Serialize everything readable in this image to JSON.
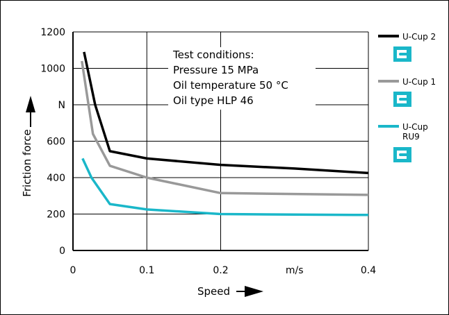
{
  "chart_data": {
    "type": "line",
    "title": "",
    "xlabel": "Speed",
    "ylabel": "Friction force",
    "y_unit": "N",
    "x_unit": "m/s",
    "xlim": [
      0,
      0.4
    ],
    "ylim": [
      0,
      1200
    ],
    "x_ticks": [
      0,
      0.1,
      0.2,
      0.4
    ],
    "x_tick_labels": [
      "0",
      "0.1",
      "0.2",
      "0.4"
    ],
    "y_ticks": [
      0,
      200,
      400,
      600,
      800,
      1000,
      1200
    ],
    "y_tick_labels": [
      "0",
      "200",
      "400",
      "600",
      "N",
      "1000",
      "1200"
    ],
    "grid": true,
    "legend_position": "right",
    "annotation": [
      "Test conditions:",
      "Pressure 15 MPa",
      "Oil temperature 50 °C",
      "Oil type HLP 46"
    ],
    "series": [
      {
        "name": "U-Cup 2",
        "color": "#000000",
        "x": [
          0.015,
          0.03,
          0.05,
          0.1,
          0.2,
          0.3,
          0.4
        ],
        "y": [
          1090,
          800,
          545,
          505,
          470,
          450,
          425
        ]
      },
      {
        "name": "U-Cup 1",
        "color": "#999999",
        "x": [
          0.012,
          0.027,
          0.05,
          0.1,
          0.2,
          0.3,
          0.4
        ],
        "y": [
          1040,
          640,
          465,
          400,
          315,
          310,
          305
        ]
      },
      {
        "name": "U-Cup RU9",
        "label_lines": [
          "U-Cup",
          "RU9"
        ],
        "color": "#1ab7c9",
        "x": [
          0.013,
          0.025,
          0.05,
          0.1,
          0.2,
          0.3,
          0.4
        ],
        "y": [
          505,
          400,
          255,
          225,
          200,
          197,
          195
        ]
      }
    ]
  }
}
